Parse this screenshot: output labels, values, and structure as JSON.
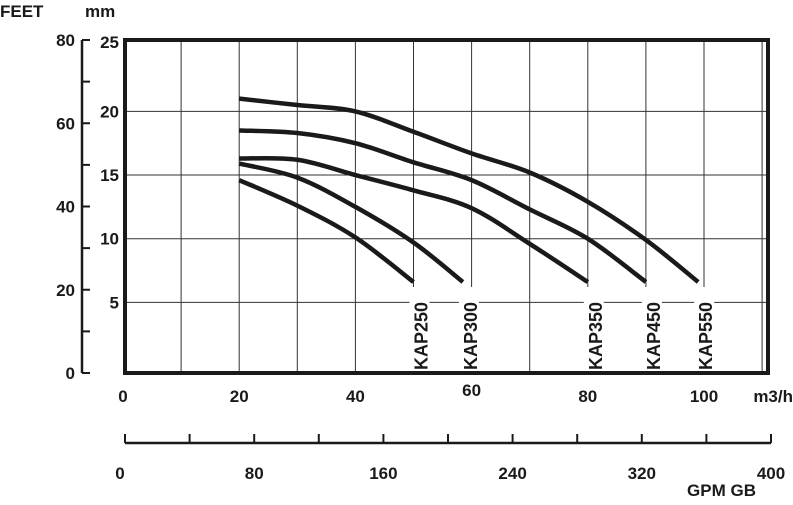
{
  "chart_data": {
    "type": "line",
    "title": "",
    "y_axis_left_outer": {
      "label": "FEET",
      "ticks": [
        0,
        20,
        40,
        60,
        80
      ],
      "minor_step": 10,
      "range": [
        0,
        80
      ]
    },
    "y_axis_left_inner": {
      "label": "mm",
      "ticks": [
        0,
        5,
        10,
        15,
        20,
        25
      ],
      "range": [
        0,
        25
      ]
    },
    "x_axis_primary": {
      "label": "m3/h",
      "ticks": [
        0,
        20,
        40,
        60,
        80,
        100
      ],
      "grid_step": 10
    },
    "x_axis_secondary": {
      "label": "GPM GB",
      "ticks": [
        0,
        80,
        160,
        240,
        320,
        400
      ],
      "minor_step": 40
    },
    "grid": true,
    "colors": {
      "curve": "#1a1a1a",
      "grid": "#333333"
    },
    "series": [
      {
        "name": "KAP250",
        "points": [
          [
            20,
            14.6
          ],
          [
            30,
            12.6
          ],
          [
            40,
            10.1
          ],
          [
            50,
            6.6
          ]
        ]
      },
      {
        "name": "KAP300",
        "points": [
          [
            20,
            15.9
          ],
          [
            30,
            14.8
          ],
          [
            40,
            12.5
          ],
          [
            50,
            9.7
          ],
          [
            58.5,
            6.6
          ]
        ]
      },
      {
        "name": "KAP350",
        "points": [
          [
            20,
            16.3
          ],
          [
            30,
            16.2
          ],
          [
            40,
            15.0
          ],
          [
            50,
            13.8
          ],
          [
            60,
            12.4
          ],
          [
            70,
            9.6
          ],
          [
            80,
            6.6
          ]
        ]
      },
      {
        "name": "KAP450",
        "points": [
          [
            20,
            18.5
          ],
          [
            30,
            18.3
          ],
          [
            40,
            17.5
          ],
          [
            50,
            16.0
          ],
          [
            60,
            14.6
          ],
          [
            70,
            12.3
          ],
          [
            80,
            10.0
          ],
          [
            90,
            6.6
          ]
        ]
      },
      {
        "name": "KAP550",
        "points": [
          [
            20,
            21.0
          ],
          [
            30,
            20.5
          ],
          [
            40,
            20.0
          ],
          [
            50,
            18.4
          ],
          [
            60,
            16.7
          ],
          [
            70,
            15.2
          ],
          [
            80,
            12.9
          ],
          [
            90,
            9.9
          ],
          [
            99,
            6.6
          ]
        ]
      }
    ]
  }
}
